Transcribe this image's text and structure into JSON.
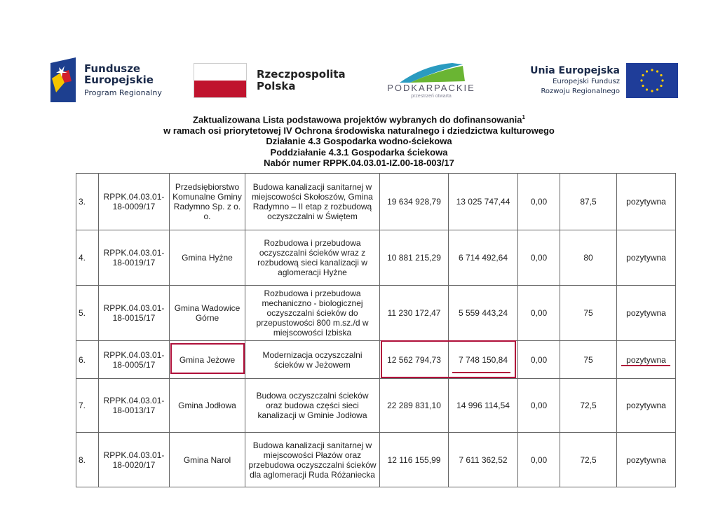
{
  "logos": {
    "fe": {
      "line1": "Fundusze",
      "line2": "Europejskie",
      "line3": "Program Regionalny"
    },
    "rp": {
      "line1": "Rzeczpospolita",
      "line2": "Polska"
    },
    "podkarpackie": {
      "name": "PODKARPACKIE",
      "tagline": "przestrzeń otwarta"
    },
    "ue": {
      "line1": "Unia Europejska",
      "line2": "Europejski Fundusz",
      "line3": "Rozwoju Regionalnego"
    }
  },
  "title": {
    "line1": "Zaktualizowana Lista podstawowa projektów wybranych do dofinansowania",
    "footnote": "1",
    "line2": "w ramach osi priorytetowej IV Ochrona środowiska naturalnego i dziedzictwa kulturowego",
    "line3": "Działanie 4.3 Gospodarka wodno-ściekowa",
    "line4": "Poddziałanie 4.3.1 Gospodarka ściekowa",
    "line5": "Nabór numer RPPK.04.03.01-IZ.00-18-003/17"
  },
  "rows": [
    {
      "no": "3.",
      "id": "RPPK.04.03.01-18-0009/17",
      "applicant": "Przedsiębiorstwo Komunalne Gminy Radymno Sp. z o. o.",
      "title": "Budowa kanalizacji sanitarnej w miejscowości Skołoszów, Gmina Radymno – II etap z rozbudową oczyszczalni w Świętem",
      "total": "19 634 928,79",
      "grant": "13 025 747,44",
      "other": "0,00",
      "score": "87,5",
      "result": "pozytywna"
    },
    {
      "no": "4.",
      "id": "RPPK.04.03.01-18-0019/17",
      "applicant": "Gmina Hyżne",
      "title": "Rozbudowa i przebudowa oczyszczalni ścieków wraz z rozbudową sieci kanalizacji w aglomeracji Hyżne",
      "total": "10 881 215,29",
      "grant": "6 714 492,64",
      "other": "0,00",
      "score": "80",
      "result": "pozytywna"
    },
    {
      "no": "5.",
      "id": "RPPK.04.03.01-18-0015/17",
      "applicant": "Gmina Wadowice Górne",
      "title": "Rozbudowa i przebudowa mechaniczno - biologicznej oczyszczalni ścieków do przepustowości 800 m.sz./d w miejscowości Izbiska",
      "total": "11 230 172,47",
      "grant": "5 559 443,24",
      "other": "0,00",
      "score": "75",
      "result": "pozytywna"
    },
    {
      "no": "6.",
      "id": "RPPK.04.03.01-18-0005/17",
      "applicant": "Gmina Jeżowe",
      "title": "Modernizacja oczyszczalni ścieków w Jeżowem",
      "total": "12 562 794,73",
      "grant": "7 748 150,84",
      "other": "0,00",
      "score": "75",
      "result": "pozytywna"
    },
    {
      "no": "7.",
      "id": "RPPK.04.03.01-18-0013/17",
      "applicant": "Gmina Jodłowa",
      "title": "Budowa oczyszczalni ścieków oraz budowa części sieci kanalizacji w Gminie Jodłowa",
      "total": "22 289 831,10",
      "grant": "14 996 114,54",
      "other": "0,00",
      "score": "72,5",
      "result": "pozytywna"
    },
    {
      "no": "8.",
      "id": "RPPK.04.03.01-18-0020/17",
      "applicant": "Gmina Narol",
      "title": "Budowa kanalizacji sanitarnej w miejscowości Płazów oraz przebudowa oczyszczalni ścieków dla aglomeracji Ruda Różaniecka",
      "total": "12 116 155,99",
      "grant": "7 611 362,52",
      "other": "0,00",
      "score": "72,5",
      "result": "pozytywna"
    }
  ],
  "highlight_color": "#b0103a"
}
